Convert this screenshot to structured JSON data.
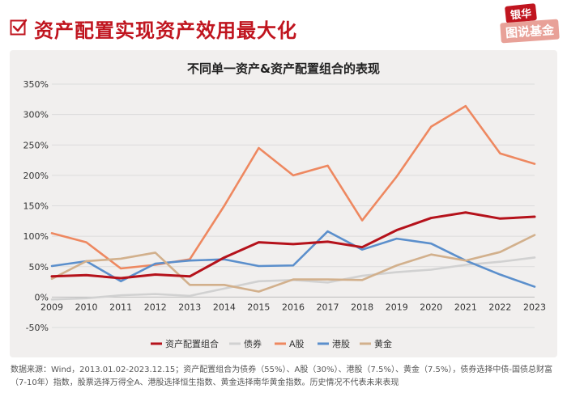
{
  "header": {
    "title": "资产配置实现资产效用最大化",
    "brand_top": "银华",
    "brand_bottom": "图说基金"
  },
  "colors": {
    "title_red": "#c0151f",
    "panel_bg": "#f1efee"
  },
  "footnote": "数据来源：Wind，2013.01.02-2023.12.15；资产配置组合为债券（55%）、A股（30%）、港股（7.5%）、黄金（7.5%），债券选择中债-国债总财富（7-10年）指数，股票选择万得全A、港股选择恒生指数、黄金选择南华黄金指数。历史情况不代表未来表现",
  "chart_data": {
    "type": "line",
    "title": "不同单一资产&资产配置组合的表现",
    "categories": [
      "2009",
      "2010",
      "2011",
      "2012",
      "2013",
      "2014",
      "2015",
      "2016",
      "2017",
      "2018",
      "2019",
      "2020",
      "2021",
      "2022",
      "2023"
    ],
    "ylim": [
      -50,
      350
    ],
    "yticks": [
      -50,
      0,
      50,
      100,
      150,
      200,
      250,
      300,
      350
    ],
    "ytick_labels": [
      "-50%",
      "0%",
      "50%",
      "100%",
      "150%",
      "200%",
      "250%",
      "300%",
      "350%"
    ],
    "legend_position": "bottom",
    "series": [
      {
        "name": "资产配置组合",
        "color": "#b5121b",
        "values": [
          34,
          36,
          31,
          37,
          34,
          65,
          90,
          87,
          91,
          82,
          110,
          130,
          139,
          129,
          132
        ]
      },
      {
        "name": "债券",
        "color": "#d1d1d1",
        "values": [
          -4,
          -2,
          3,
          5,
          2,
          14,
          26,
          28,
          24,
          35,
          41,
          45,
          53,
          58,
          65
        ]
      },
      {
        "name": "A股",
        "color": "#ee8860",
        "values": [
          105,
          90,
          47,
          53,
          62,
          150,
          245,
          200,
          216,
          126,
          198,
          280,
          314,
          236,
          219
        ]
      },
      {
        "name": "港股",
        "color": "#5b8fcc",
        "values": [
          51,
          59,
          26,
          55,
          60,
          62,
          51,
          52,
          108,
          78,
          96,
          88,
          60,
          37,
          17
        ]
      },
      {
        "name": "黄金",
        "color": "#d2b08c",
        "values": [
          30,
          59,
          63,
          73,
          20,
          20,
          9,
          29,
          29,
          28,
          52,
          70,
          60,
          74,
          102
        ]
      }
    ]
  }
}
